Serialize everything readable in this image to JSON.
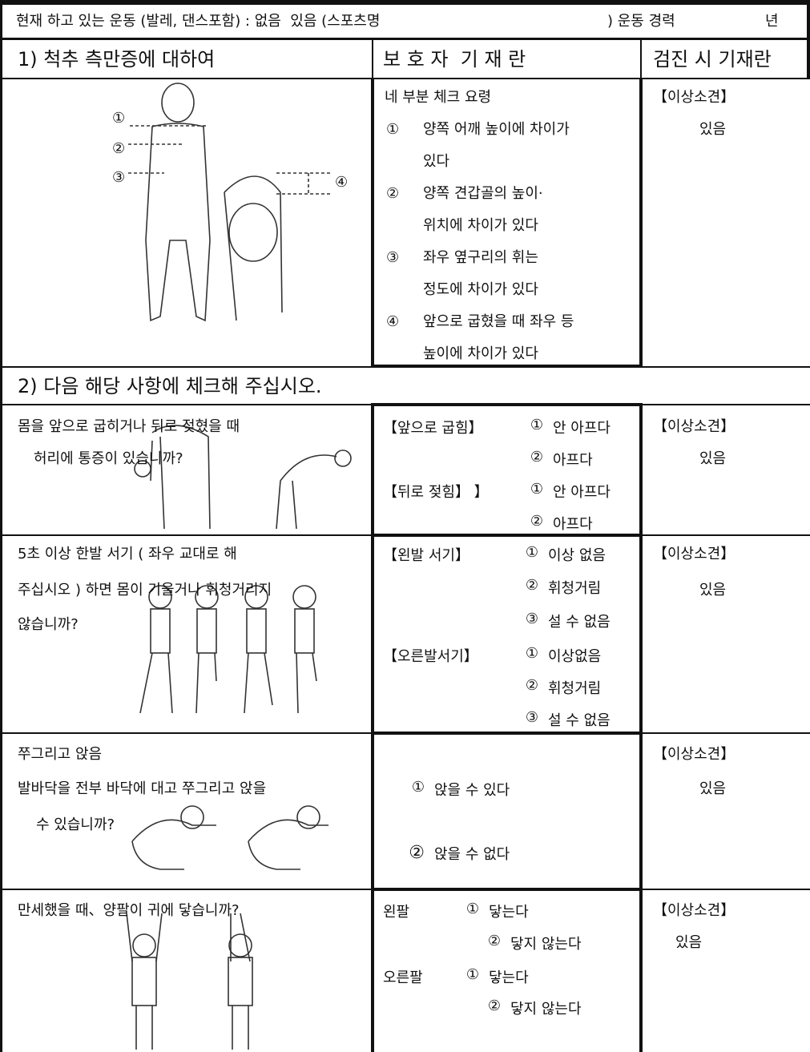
{
  "header": {
    "segments": [
      "현재 하고 있는 운동 (발레, 댄스포함) : 없음  있음 (스포츠명",
      ") 운동 경력",
      "년"
    ]
  },
  "section1": {
    "title": "1) 척추 측만증에 대하여",
    "guardian_header": "보 호 자  기 재 란",
    "exam_header": "검진 시 기재란",
    "figure_labels": [
      "①",
      "②",
      "③",
      "④"
    ],
    "instructions_title": "네 부분 체크 요령",
    "items": [
      {
        "marker": "①",
        "lines": [
          "양쪽 어깨 높이에 차이가",
          "있다"
        ]
      },
      {
        "marker": "②",
        "lines": [
          "양쪽 견갑골의 높이·",
          "위치에 차이가 있다"
        ]
      },
      {
        "marker": "③",
        "lines": [
          "좌우 옆구리의 휘는",
          "정도에 차이가 있다"
        ]
      },
      {
        "marker": "④",
        "lines": [
          "앞으로 굽혔을 때 좌우 등",
          "높이에 차이가 있다"
        ]
      }
    ],
    "finding_label": "【이상소견】",
    "finding_value": "있음"
  },
  "section2": {
    "title": "2) 다음 해당 사항에 체크해 주십시오.",
    "rows": [
      {
        "question": [
          "몸을 앞으로 굽히거나 뒤로 젖혔을 때",
          "허리에 통증이 있습니까?"
        ],
        "options": [
          {
            "label": "【앞으로 굽힘】",
            "marker": "①",
            "text": "안 아프다"
          },
          {
            "marker": "②",
            "text": "아프다"
          },
          {
            "label": "【뒤로 젖힘】 】",
            "marker": "①",
            "text": "안 아프다"
          },
          {
            "marker": "②",
            "text": "아프다"
          }
        ],
        "finding_label": "【이상소견】",
        "finding_value": "있음"
      },
      {
        "question": [
          "5초 이상 한발 서기 ( 좌우 교대로 해",
          "주십시오 ) 하면 몸이 기울거나 휘청거리지",
          "않습니까?"
        ],
        "options": [
          {
            "label": "【왼발 서기】",
            "marker": "①",
            "text": "이상 없음"
          },
          {
            "marker": "②",
            "text": "휘청거림"
          },
          {
            "marker": "③",
            "text": "설 수 없음"
          },
          {
            "label": "【오른발서기】",
            "marker": "①",
            "text": "이상없음"
          },
          {
            "marker": "②",
            "text": "휘청거림"
          },
          {
            "marker": "③",
            "text": "설 수 없음"
          }
        ],
        "finding_label": "【이상소견】",
        "finding_value": "있음"
      },
      {
        "question": [
          "쭈그리고 앉음",
          "발바닥을 전부 바닥에 대고 쭈그리고 앉을",
          "수 있습니까?"
        ],
        "options": [
          {
            "marker": "①",
            "text": "앉을 수 있다"
          },
          {
            "marker": "②",
            "text": "앉을 수 없다"
          }
        ],
        "finding_label": "【이상소견】",
        "finding_value": "있음"
      },
      {
        "question": [
          "만세했을 때、양팔이 귀에 닿습니까?"
        ],
        "options": [
          {
            "label": "왼팔",
            "marker": "①",
            "text": "닿는다"
          },
          {
            "marker": "②",
            "text": "닿지 않는다"
          },
          {
            "label": "오른팔",
            "marker": "①",
            "text": "닿는다"
          },
          {
            "marker": "②",
            "text": "닿지 않는다"
          }
        ],
        "finding_label": "【이상소견】",
        "finding_value": "있음"
      }
    ]
  }
}
